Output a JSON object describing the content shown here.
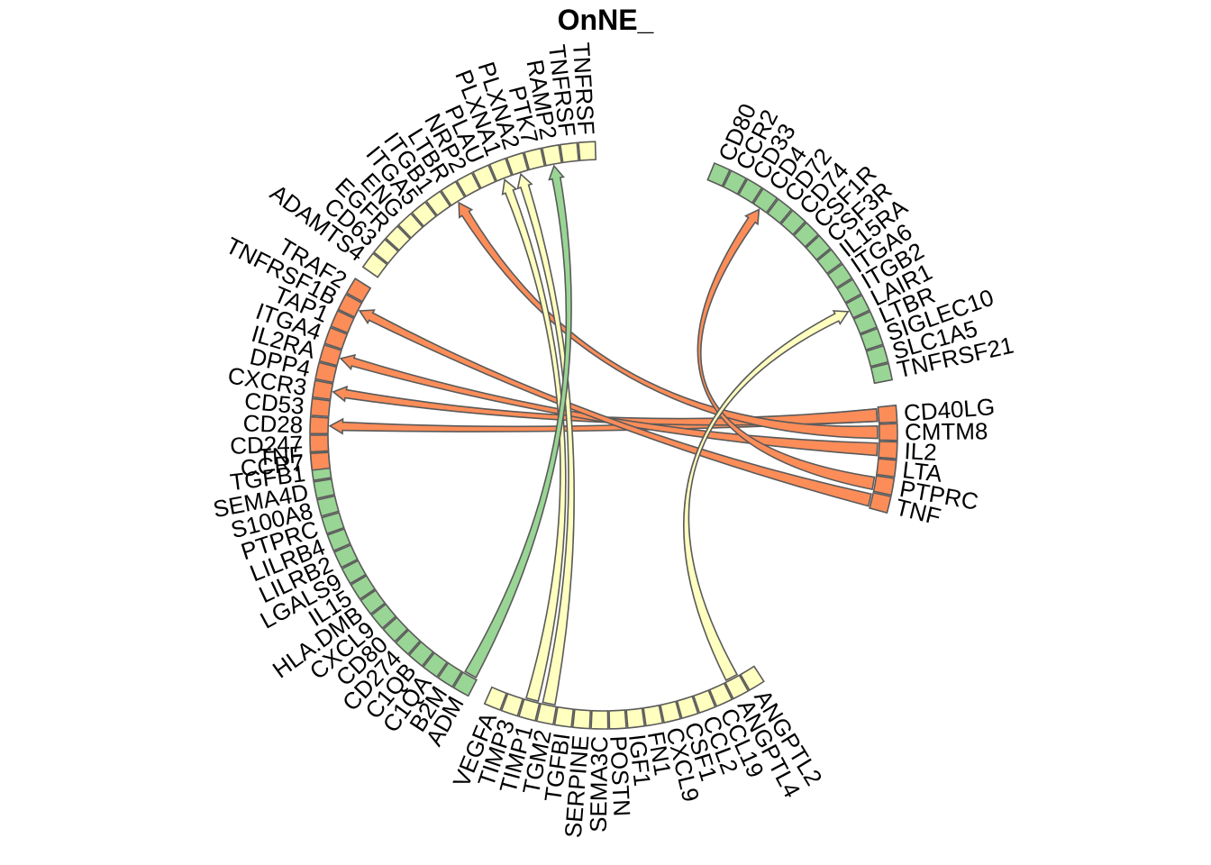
{
  "chart_data": {
    "type": "chord",
    "title": "OnNE_",
    "colors": {
      "sender_receptor": "#FC8D59",
      "ligand": "#FFFFBF",
      "receiver_ligand": "#99D594"
    },
    "sectors": [
      {
        "group": "top_green",
        "color": "#99D594",
        "labels": [
          "CD80",
          "CCR2",
          "CD33",
          "CD4",
          "CD72",
          "CD74",
          "CSF1R",
          "CSF3R",
          "IL15RA",
          "ITGA6",
          "ITGB2",
          "LAIR1",
          "LTBR",
          "SIGLEC10",
          "SLC1A5",
          "TNFRSF21"
        ]
      },
      {
        "group": "right_orange",
        "color": "#FC8D59",
        "labels": [
          "CD40LG",
          "CMTM8",
          "IL2",
          "LTA",
          "PTPRC",
          "TNF"
        ]
      },
      {
        "group": "bottom_right_yellow",
        "color": "#FFFFBF",
        "labels": [
          "ANGPTL2",
          "ANGPTL4",
          "CCL19",
          "CCL2",
          "CSF1",
          "CXCL9",
          "FN1",
          "IGF1",
          "POSTN",
          "SEMA3C",
          "SERPINE",
          "TGFBI",
          "TGM2",
          "TIMP1",
          "TIMP3",
          "VEGFA"
        ]
      },
      {
        "group": "bottom_left_green",
        "color": "#99D594",
        "labels": [
          "ADM",
          "B2M",
          "C1QA",
          "C1QB",
          "CD274",
          "CD80",
          "CXCL9",
          "HLA.DMB",
          "IL15",
          "LGALS9",
          "LILRB2",
          "LILRB4",
          "PTPRC",
          "S100A8",
          "SEMA4D",
          "TGFB1",
          "TNF"
        ]
      },
      {
        "group": "left_orange",
        "color": "#FC8D59",
        "labels": [
          "CCR7",
          "CD247",
          "CD28",
          "CD53",
          "CXCR3",
          "DPP4",
          "IL2RA",
          "ITGA4",
          "TAP1",
          "TNFRSF1B",
          "TRAF2"
        ]
      },
      {
        "group": "top_yellow",
        "color": "#FFFFBF",
        "labels": [
          "ADAMTS4",
          "CD63",
          "EGFR",
          "ENG",
          "ITGA5",
          "ITGB1",
          "LTBR",
          "NRP2",
          "PLAU",
          "PLXNA1",
          "PLXNA2",
          "PTK7",
          "RAMP2",
          "TNFRSF",
          "TNFRSF"
        ]
      }
    ],
    "links": [
      {
        "from": "CD40LG",
        "to": "CD28",
        "color": "#FC8D59"
      },
      {
        "from": "CD40LG",
        "to": "CXCR3",
        "color": "#FC8D59"
      },
      {
        "from": "CMTM8",
        "to": "LTBR",
        "color": "#FC8D59"
      },
      {
        "from": "IL2",
        "to": "IL2RA",
        "color": "#FC8D59"
      },
      {
        "from": "TNF",
        "to": "TNFRSF1B",
        "color": "#FC8D59"
      },
      {
        "from": "PTPRC",
        "to": "CD4",
        "color": "#FC8D59"
      },
      {
        "from": "ANGPTL4",
        "to": "LAIR1",
        "color": "#FFFFBF"
      },
      {
        "from": "TIMP1",
        "to": "PLXNA1",
        "color": "#FFFFBF"
      },
      {
        "from": "TGM2",
        "to": "PLXNA2",
        "color": "#FFFFBF"
      },
      {
        "from": "ADM",
        "to": "RAMP2",
        "color": "#99D594"
      }
    ]
  }
}
